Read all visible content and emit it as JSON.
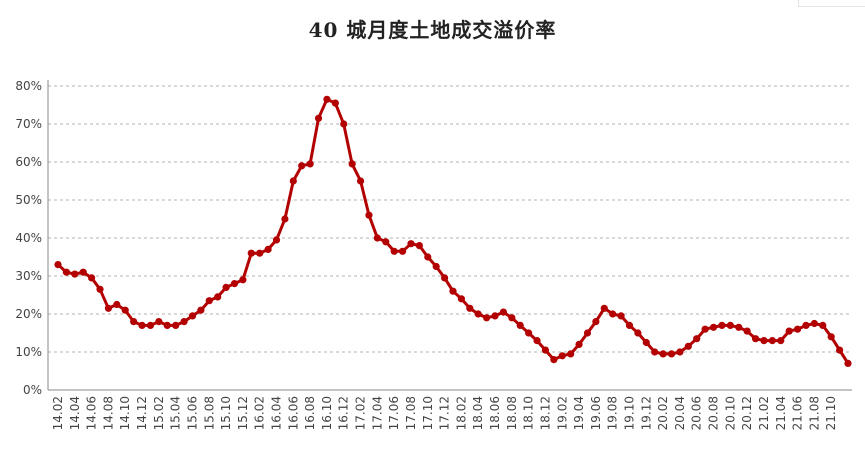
{
  "chart_data": {
    "type": "line",
    "title": "40 城月度土地成交溢价率",
    "xlabel": "",
    "ylabel": "",
    "ylim": [
      0,
      80
    ],
    "yticks": [
      "0%",
      "10%",
      "20%",
      "30%",
      "40%",
      "50%",
      "60%",
      "70%",
      "80%"
    ],
    "grid": true,
    "legend": "none",
    "x_tick_labels": [
      "14.02",
      "14.04",
      "14.06",
      "14.08",
      "14.10",
      "14.12",
      "15.02",
      "15.04",
      "15.06",
      "15.08",
      "15.10",
      "15.12",
      "16.02",
      "16.04",
      "16.06",
      "16.08",
      "16.10",
      "16.12",
      "17.02",
      "17.04",
      "17.06",
      "17.08",
      "17.10",
      "17.12",
      "18.02",
      "18.04",
      "18.06",
      "18.08",
      "18.10",
      "18.12",
      "19.02",
      "19.04",
      "19.06",
      "19.08",
      "19.10",
      "19.12",
      "20.02",
      "20.04",
      "20.06",
      "20.08",
      "20.10",
      "20.12",
      "21.02",
      "21.04",
      "21.06",
      "21.08",
      "21.10"
    ],
    "series": [
      {
        "color": "#b30000",
        "x": [
          "14.02",
          "14.03",
          "14.04",
          "14.05",
          "14.06",
          "14.07",
          "14.08",
          "14.09",
          "14.10",
          "14.11",
          "14.12",
          "15.01",
          "15.02",
          "15.03",
          "15.04",
          "15.05",
          "15.06",
          "15.07",
          "15.08",
          "15.09",
          "15.10",
          "15.11",
          "15.12",
          "16.01",
          "16.02",
          "16.03",
          "16.04",
          "16.05",
          "16.06",
          "16.07",
          "16.08",
          "16.09",
          "16.10",
          "16.11",
          "16.12",
          "17.01",
          "17.02",
          "17.03",
          "17.04",
          "17.05",
          "17.06",
          "17.07",
          "17.08",
          "17.09",
          "17.10",
          "17.11",
          "17.12",
          "18.01",
          "18.02",
          "18.03",
          "18.04",
          "18.05",
          "18.06",
          "18.07",
          "18.08",
          "18.09",
          "18.10",
          "18.11",
          "18.12",
          "19.01",
          "19.02",
          "19.03",
          "19.04",
          "19.05",
          "19.06",
          "19.07",
          "19.08",
          "19.09",
          "19.10",
          "19.11",
          "19.12",
          "20.01",
          "20.02",
          "20.03",
          "20.04",
          "20.05",
          "20.06",
          "20.07",
          "20.08",
          "20.09",
          "20.10",
          "20.11",
          "20.12",
          "21.01",
          "21.02",
          "21.03",
          "21.04",
          "21.05",
          "21.06",
          "21.07",
          "21.08",
          "21.09",
          "21.10",
          "21.11",
          "21.12"
        ],
        "values": [
          33,
          31,
          30.5,
          31,
          29.5,
          26.5,
          21.5,
          22.5,
          21,
          18,
          17,
          17,
          18,
          17,
          17,
          18,
          19.5,
          21,
          23.5,
          24.5,
          27,
          28,
          29,
          36,
          36,
          37,
          39.5,
          45,
          55,
          59,
          59.5,
          71.5,
          76.5,
          75.5,
          70,
          59.5,
          55,
          46,
          40,
          39,
          36.5,
          36.5,
          38.5,
          38,
          35,
          32.5,
          29.5,
          26,
          24,
          21.5,
          20,
          19,
          19.5,
          20.5,
          19,
          17,
          15,
          13,
          10.5,
          8,
          9,
          9.5,
          12,
          15,
          18,
          21.5,
          20,
          19.5,
          17,
          15,
          12.5,
          10,
          9.5,
          9.5,
          10,
          11.5,
          13.5,
          16,
          16.5,
          17,
          17,
          16.5,
          15.5,
          13.5,
          13,
          13,
          13,
          15.5,
          16,
          17,
          17.5,
          17,
          14,
          10.5,
          7
        ]
      }
    ]
  }
}
